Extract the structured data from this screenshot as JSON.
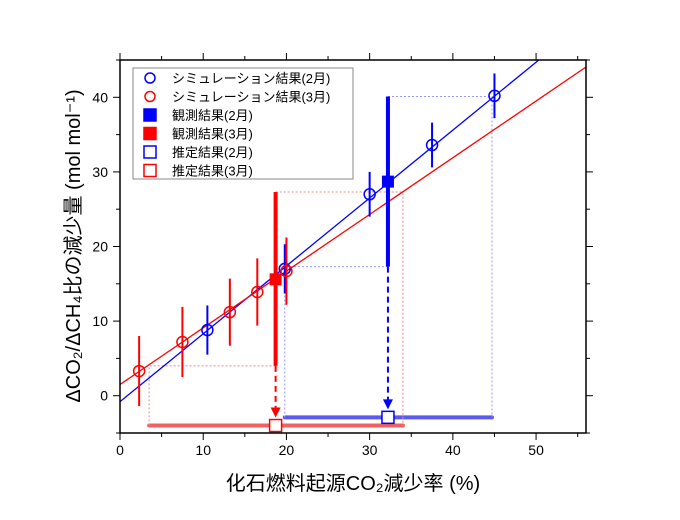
{
  "chart_data": {
    "type": "scatter",
    "xlabel": "化石燃料起源CO₂減少率 (%)",
    "ylabel": "ΔCO₂/ΔCH₄比の減少量 (mol mol⁻¹)",
    "xlim": [
      0,
      56
    ],
    "ylim": [
      -5,
      45
    ],
    "xticks": [
      0,
      10,
      20,
      30,
      40,
      50
    ],
    "yticks": [
      0,
      10,
      20,
      30,
      40
    ],
    "grid": false,
    "legend_position": "top-left",
    "colors": {
      "feb": "#0000ff",
      "mar": "#ff0000"
    },
    "series": [
      {
        "name": "シミュレーション結果(2月)",
        "marker": "open-circle",
        "color": "#0000ff",
        "points": [
          {
            "x": 10.5,
            "y": 8.8,
            "err": 3.3
          },
          {
            "x": 19.8,
            "y": 17.0,
            "err": 3.3
          },
          {
            "x": 30.0,
            "y": 27.0,
            "err": 3.0
          },
          {
            "x": 37.5,
            "y": 33.6,
            "err": 3.0
          },
          {
            "x": 45.0,
            "y": 40.2,
            "err": 3.0
          }
        ],
        "fit": {
          "intercept": -0.8,
          "slope": 0.91
        }
      },
      {
        "name": "シミュレーション結果(3月)",
        "marker": "open-circle",
        "color": "#ff0000",
        "points": [
          {
            "x": 2.3,
            "y": 3.3,
            "err": 4.7
          },
          {
            "x": 7.5,
            "y": 7.2,
            "err": 4.7
          },
          {
            "x": 13.2,
            "y": 11.2,
            "err": 4.5
          },
          {
            "x": 16.5,
            "y": 13.9,
            "err": 4.5
          },
          {
            "x": 20.0,
            "y": 16.7,
            "err": 4.5
          }
        ],
        "fit": {
          "intercept": 1.5,
          "slope": 0.76
        }
      },
      {
        "name": "観測結果(2月)",
        "marker": "filled-square",
        "color": "#0000ff",
        "points": [
          {
            "x": 32.2,
            "y": 28.7,
            "ylow": 17.3,
            "yhigh": 40.1
          }
        ]
      },
      {
        "name": "観測結果(3月)",
        "marker": "filled-square",
        "color": "#ff0000",
        "points": [
          {
            "x": 18.7,
            "y": 15.6,
            "ylow": 4.0,
            "yhigh": 27.3
          }
        ]
      },
      {
        "name": "推定結果(2月)",
        "marker": "open-square",
        "color": "#0000ff",
        "points": [
          {
            "x": 32.2,
            "y": -2.9,
            "xlow": 19.8,
            "xhigh": 44.7
          }
        ]
      },
      {
        "name": "推定結果(3月)",
        "marker": "open-square",
        "color": "#ff0000",
        "points": [
          {
            "x": 18.7,
            "y": -4.0,
            "xlow": 3.5,
            "xhigh": 34.0
          }
        ]
      }
    ]
  }
}
